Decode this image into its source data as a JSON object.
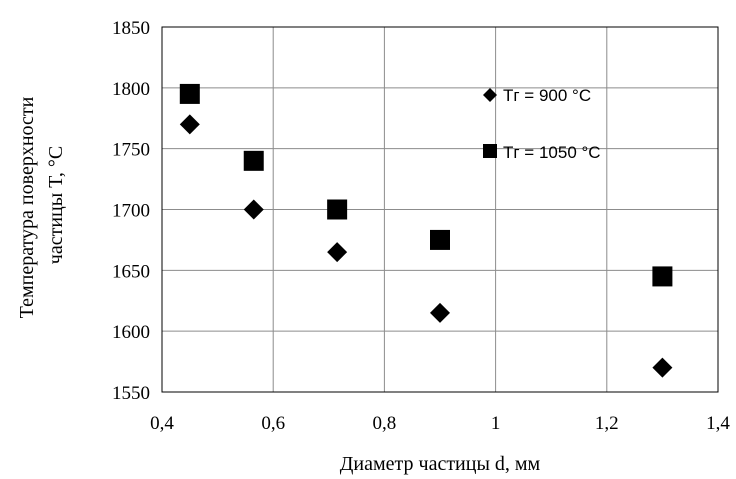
{
  "chart_data": {
    "type": "scatter",
    "xlabel": "Диаметр частицы d, мм",
    "ylabel_lines": [
      "Температура поверхности",
      "частицы  T, °C"
    ],
    "xlim": [
      0.4,
      1.4
    ],
    "ylim": [
      1550,
      1850
    ],
    "x_ticks": [
      0.4,
      0.6,
      0.8,
      1.0,
      1.2,
      1.4
    ],
    "x_tick_labels": [
      "0,4",
      "0,6",
      "0,8",
      "1",
      "1,2",
      "1,4"
    ],
    "y_ticks": [
      1550,
      1600,
      1650,
      1700,
      1750,
      1800,
      1850
    ],
    "y_tick_labels": [
      "1550",
      "1600",
      "1650",
      "1700",
      "1750",
      "1800",
      "1850"
    ],
    "grid": true,
    "legend_position": "right, inside plot",
    "series": [
      {
        "name": "Tг = 900 °C",
        "marker": "diamond",
        "color": "#000000",
        "points": [
          [
            0.45,
            1770
          ],
          [
            0.565,
            1700
          ],
          [
            0.715,
            1665
          ],
          [
            0.9,
            1615
          ],
          [
            1.3,
            1570
          ]
        ]
      },
      {
        "name": "Tг = 1050 °C",
        "marker": "square",
        "color": "#000000",
        "points": [
          [
            0.45,
            1795
          ],
          [
            0.565,
            1740
          ],
          [
            0.715,
            1700
          ],
          [
            0.9,
            1675
          ],
          [
            1.3,
            1645
          ]
        ]
      }
    ]
  }
}
